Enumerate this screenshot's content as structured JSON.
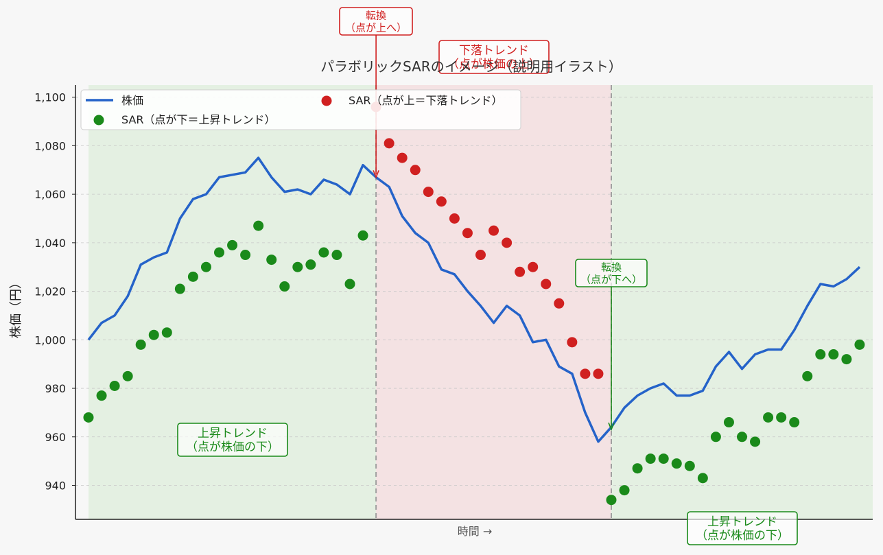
{
  "chart_data": {
    "type": "line",
    "title": "パラボリックSARのイメージ（説明用イラスト）",
    "xlabel": "時間 →",
    "ylabel": "株価（円）",
    "ylim": [
      926,
      1105
    ],
    "yticks": [
      940,
      960,
      980,
      1000,
      1020,
      1040,
      1060,
      1080,
      1100
    ],
    "ytick_labels": [
      "940",
      "960",
      "980",
      "1,000",
      "1,020",
      "1,040",
      "1,060",
      "1,080",
      "1,100"
    ],
    "xlim": [
      -1,
      60
    ],
    "grid": "horizontal dashed",
    "legend_position": "top-left",
    "colors": {
      "price": "#2563c9",
      "sar_up": "#1a8a1a",
      "sar_down": "#d02020",
      "up_region": "#e4f0e2",
      "down_region": "#f4e2e3",
      "reversal_line": "#a0a0a0"
    },
    "series": [
      {
        "name": "株価",
        "kind": "line",
        "x": [
          0,
          1,
          2,
          3,
          4,
          5,
          6,
          7,
          8,
          9,
          10,
          11,
          12,
          13,
          14,
          15,
          16,
          17,
          18,
          19,
          20,
          21,
          22,
          23,
          24,
          25,
          26,
          27,
          28,
          29,
          30,
          31,
          32,
          33,
          34,
          35,
          36,
          37,
          38,
          39,
          40,
          41,
          42,
          43,
          44,
          45,
          46,
          47,
          48,
          49,
          50,
          51,
          52,
          53,
          54,
          55,
          56,
          57,
          58,
          59
        ],
        "values": [
          1000,
          1007,
          1010,
          1018,
          1031,
          1034,
          1036,
          1050,
          1058,
          1060,
          1067,
          1068,
          1069,
          1075,
          1067,
          1061,
          1062,
          1060,
          1066,
          1064,
          1060,
          1072,
          1067,
          1063,
          1051,
          1044,
          1040,
          1029,
          1027,
          1020,
          1014,
          1007,
          1014,
          1010,
          999,
          1000,
          989,
          986,
          970,
          958,
          964,
          972,
          977,
          980,
          982,
          977,
          977,
          979,
          989,
          995,
          988,
          994,
          996,
          996,
          1004,
          1014,
          1023,
          1022,
          1025,
          1030
        ]
      },
      {
        "name": "SAR（点が下＝上昇トレンド）",
        "kind": "scatter",
        "x": [
          0,
          1,
          2,
          3,
          4,
          5,
          6,
          7,
          8,
          9,
          10,
          11,
          12,
          13,
          14,
          15,
          16,
          17,
          18,
          19,
          20,
          21
        ],
        "values": [
          968,
          977,
          981,
          985,
          998,
          1002,
          1003,
          1021,
          1026,
          1030,
          1036,
          1039,
          1035,
          1047,
          1033,
          1022,
          1030,
          1031,
          1036,
          1035,
          1023,
          1043
        ]
      },
      {
        "name": "SAR（点が上＝下落トレンド）",
        "kind": "scatter",
        "x": [
          22,
          23,
          24,
          25,
          26,
          27,
          28,
          29,
          30,
          31,
          32,
          33,
          34,
          35,
          36,
          37,
          38,
          39
        ],
        "values": [
          1096,
          1081,
          1075,
          1070,
          1061,
          1057,
          1050,
          1044,
          1035,
          1045,
          1040,
          1028,
          1030,
          1023,
          1015,
          999,
          986,
          986
        ]
      },
      {
        "name": "SAR（点が下＝上昇トレンド）",
        "kind": "scatter",
        "x": [
          40,
          41,
          42,
          43,
          44,
          45,
          46,
          47,
          48,
          49,
          50,
          51,
          52,
          53,
          54,
          55,
          56,
          57,
          58,
          59
        ],
        "values": [
          934,
          938,
          947,
          951,
          951,
          949,
          948,
          943,
          960,
          966,
          960,
          958,
          968,
          968,
          966,
          985,
          994,
          994,
          992,
          998
        ]
      }
    ],
    "regions": [
      {
        "trend": "up",
        "from": 0,
        "to": 22
      },
      {
        "trend": "down",
        "from": 22,
        "to": 40
      },
      {
        "trend": "up",
        "from": 40,
        "to": 60
      }
    ],
    "reversal_lines": [
      22,
      40
    ],
    "legend": [
      {
        "label": "株価",
        "marker": "line",
        "color": "#2563c9"
      },
      {
        "label": "SAR（点が下＝上昇トレンド）",
        "marker": "dot",
        "color": "#1a8a1a"
      },
      {
        "label": "SAR（点が上＝下落トレンド）",
        "marker": "dot",
        "color": "#d02020"
      }
    ],
    "annotations": [
      {
        "lines": [
          "転換",
          "（点が上へ）"
        ],
        "color": "#d02020",
        "arrow_to_x": 22,
        "arrow_to_y": 1067
      },
      {
        "lines": [
          "下落トレンド",
          "（点が株価の上）"
        ],
        "color": "#d02020"
      },
      {
        "lines": [
          "転換",
          "（点が下へ）"
        ],
        "color": "#1a8a1a",
        "arrow_to_x": 40,
        "arrow_to_y": 963
      },
      {
        "lines": [
          "上昇トレンド",
          "（点が株価の下）"
        ],
        "color": "#1a8a1a"
      },
      {
        "lines": [
          "上昇トレンド",
          "（点が株価の下）"
        ],
        "color": "#1a8a1a"
      }
    ]
  }
}
